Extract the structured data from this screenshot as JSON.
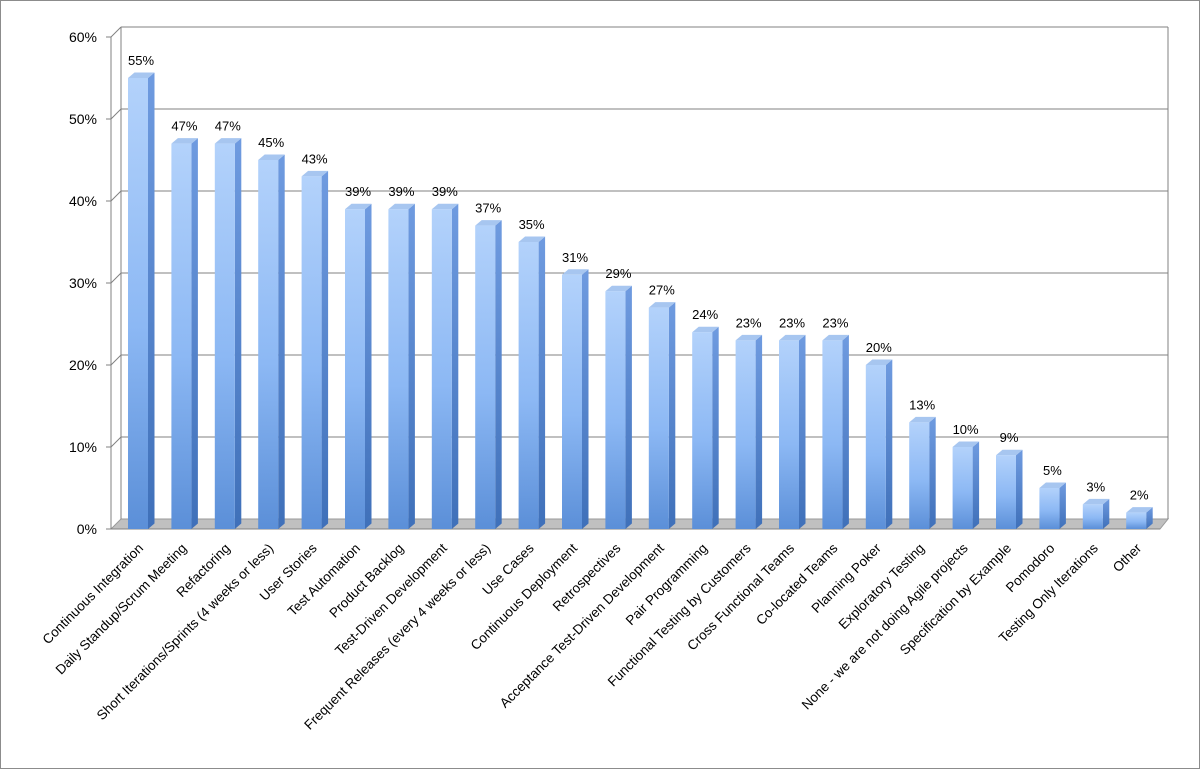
{
  "chart_data": {
    "type": "bar",
    "title": "",
    "xlabel": "",
    "ylabel": "",
    "ylim": [
      0,
      60
    ],
    "y_ticks": [
      "0%",
      "10%",
      "20%",
      "30%",
      "40%",
      "50%",
      "60%"
    ],
    "grid": true,
    "legend": "none",
    "categories": [
      "Continuous Integration",
      "Daily Standup/Scrum Meeting",
      "Refactoring",
      "Short Iterations/Sprints (4 weeks or less)",
      "User Stories",
      "Test Automation",
      "Product Backlog",
      "Test-Driven Development",
      "Frequent Releases (every 4 weeks or less)",
      "Use Cases",
      "Continuous Deployment",
      "Retrospectives",
      "Acceptance Test-Driven Development",
      "Pair Programming",
      "Functional Testing by Customers",
      "Cross Functional Teams",
      "Co-located Teams",
      "Planning Poker",
      "Exploratory Testing",
      "None - we are not doing Agile projects",
      "Specification by Example",
      "Pomodoro",
      "Testing Only Iterations",
      "Other"
    ],
    "values": [
      55,
      47,
      47,
      45,
      43,
      39,
      39,
      39,
      37,
      35,
      31,
      29,
      27,
      24,
      23,
      23,
      23,
      20,
      13,
      10,
      9,
      5,
      3,
      2
    ],
    "data_labels": [
      "55%",
      "47%",
      "47%",
      "45%",
      "43%",
      "39%",
      "39%",
      "39%",
      "37%",
      "35%",
      "31%",
      "29%",
      "27%",
      "24%",
      "23%",
      "23%",
      "23%",
      "20%",
      "13%",
      "10%",
      "9%",
      "5%",
      "3%",
      "2%"
    ],
    "colors": {
      "bar_light": "#b3d2fb",
      "bar_mid": "#8cb8f4",
      "bar_dark": "#5b8fd8",
      "bar_side": "#3f70b9",
      "bar_top": "#a7c6f0",
      "gridline": "#808080",
      "floor": "#c0c0c0",
      "back_wall": "#ffffff"
    }
  }
}
